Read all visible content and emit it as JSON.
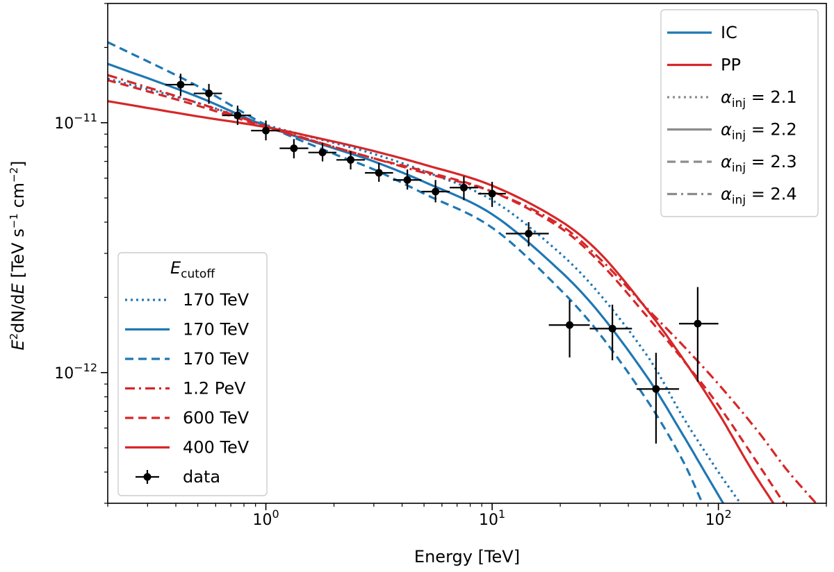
{
  "chart_data": {
    "type": "line",
    "title": "",
    "xlabel": "Energy [TeV]",
    "ylabel": "E²dN/dE [TeV s⁻¹ cm⁻²]",
    "xscale": "log",
    "yscale": "log",
    "xlim": [
      0.2,
      300
    ],
    "ylim": [
      3e-13,
      3e-11
    ],
    "x_ticks": [
      {
        "value": 1,
        "label": "10⁰"
      },
      {
        "value": 10,
        "label": "10¹"
      },
      {
        "value": 100,
        "label": "10²"
      }
    ],
    "y_ticks": [
      {
        "value": 1e-12,
        "label": "10⁻¹²"
      },
      {
        "value": 1e-11,
        "label": "10⁻¹¹"
      }
    ],
    "colors": {
      "IC": "#1f77b4",
      "PP": "#d62728",
      "data": "#000000",
      "legend_gray": "#8c8c8c"
    },
    "legend_right": {
      "placement": "top-right",
      "entries": [
        {
          "label": "IC",
          "color": "#1f77b4",
          "dash": "solid"
        },
        {
          "label": "PP",
          "color": "#d62728",
          "dash": "solid"
        },
        {
          "label": "α_inj = 2.1",
          "sym": "α",
          "sub": "inj",
          "rest": " = 2.1",
          "color": "#8c8c8c",
          "dash": "dotted"
        },
        {
          "label": "α_inj = 2.2",
          "sym": "α",
          "sub": "inj",
          "rest": " = 2.2",
          "color": "#8c8c8c",
          "dash": "solid"
        },
        {
          "label": "α_inj = 2.3",
          "sym": "α",
          "sub": "inj",
          "rest": " = 2.3",
          "color": "#8c8c8c",
          "dash": "dashed"
        },
        {
          "label": "α_inj = 2.4",
          "sym": "α",
          "sub": "inj",
          "rest": " = 2.4",
          "color": "#8c8c8c",
          "dash": "dashdot"
        }
      ]
    },
    "legend_left": {
      "placement": "lower-left",
      "title": "E_cutoff",
      "title_sym": "E",
      "title_sub": "cutoff",
      "entries": [
        {
          "label": "170 TeV",
          "color": "#1f77b4",
          "dash": "dotted"
        },
        {
          "label": "170 TeV",
          "color": "#1f77b4",
          "dash": "solid"
        },
        {
          "label": "170 TeV",
          "color": "#1f77b4",
          "dash": "dashed"
        },
        {
          "label": "1.2 PeV",
          "color": "#d62728",
          "dash": "dashdot"
        },
        {
          "label": "600 TeV",
          "color": "#d62728",
          "dash": "dashed"
        },
        {
          "label": "400 TeV",
          "color": "#d62728",
          "dash": "solid"
        },
        {
          "label": "data",
          "color": "#000000",
          "dash": "marker"
        }
      ]
    },
    "series": [
      {
        "name": "IC α_inj=2.1, E_cutoff=170 TeV",
        "color": "#1f77b4",
        "dash": "dotted",
        "x": [
          0.2,
          0.5,
          1,
          2,
          3,
          5,
          10,
          20,
          30,
          50,
          70,
          100,
          125
        ],
        "y": [
          1.5e-11,
          1.2e-11,
          9.8e-12,
          8.3e-12,
          7.5e-12,
          6.4e-12,
          4.9e-12,
          3e-12,
          2.05e-12,
          1.12e-12,
          6.6e-13,
          4e-13,
          3e-13
        ]
      },
      {
        "name": "IC α_inj=2.2, E_cutoff=170 TeV",
        "color": "#1f77b4",
        "dash": "solid",
        "x": [
          0.2,
          0.5,
          1,
          2,
          3,
          5,
          10,
          20,
          30,
          50,
          70,
          90,
          105
        ],
        "y": [
          1.72e-11,
          1.27e-11,
          9.7e-12,
          7.9e-12,
          7e-12,
          5.8e-12,
          4.3e-12,
          2.55e-12,
          1.72e-12,
          9.2e-13,
          5.6e-13,
          3.8e-13,
          3e-13
        ]
      },
      {
        "name": "IC α_inj=2.3, E_cutoff=170 TeV",
        "color": "#1f77b4",
        "dash": "dashed",
        "x": [
          0.2,
          0.5,
          1,
          2,
          3,
          5,
          10,
          20,
          30,
          50,
          70,
          85
        ],
        "y": [
          2.1e-11,
          1.4e-11,
          9.8e-12,
          7.5e-12,
          6.5e-12,
          5.2e-12,
          3.8e-12,
          2.15e-12,
          1.42e-12,
          7.4e-13,
          4.4e-13,
          3e-13
        ]
      },
      {
        "name": "PP α_inj=2.4, E_cutoff=1.2 PeV",
        "color": "#d62728",
        "dash": "dashdot",
        "x": [
          0.2,
          0.5,
          1,
          2,
          3,
          5,
          10,
          20,
          30,
          50,
          70,
          100,
          150,
          200,
          270
        ],
        "y": [
          1.55e-11,
          1.2e-11,
          9.7e-12,
          8e-12,
          7.2e-12,
          6.3e-12,
          5.3e-12,
          3.9e-12,
          2.85e-12,
          1.75e-12,
          1.28e-12,
          9e-13,
          5.8e-13,
          4.1e-13,
          3e-13
        ]
      },
      {
        "name": "PP α_inj=2.3, E_cutoff=600 TeV",
        "color": "#d62728",
        "dash": "dashed",
        "x": [
          0.2,
          0.5,
          1,
          2,
          3,
          5,
          10,
          20,
          30,
          50,
          70,
          100,
          150,
          195
        ],
        "y": [
          1.48e-11,
          1.17e-11,
          9.6e-12,
          8e-12,
          7.2e-12,
          6.4e-12,
          5.3e-12,
          3.8e-12,
          2.75e-12,
          1.62e-12,
          1.12e-12,
          7.4e-13,
          4.3e-13,
          3e-13
        ]
      },
      {
        "name": "PP α_inj=2.2, E_cutoff=400 TeV",
        "color": "#d62728",
        "dash": "solid",
        "x": [
          0.2,
          0.5,
          1,
          2,
          3,
          5,
          10,
          20,
          30,
          50,
          70,
          100,
          140,
          175
        ],
        "y": [
          1.22e-11,
          1.06e-11,
          9.6e-12,
          8.4e-12,
          7.7e-12,
          6.8e-12,
          5.6e-12,
          4.05e-12,
          3e-12,
          1.72e-12,
          1.13e-12,
          6.9e-13,
          4.1e-13,
          3e-13
        ]
      }
    ],
    "data_points": [
      {
        "x": 0.42,
        "y": 1.42e-11,
        "xerr": [
          0.36,
          0.48
        ],
        "yerr": [
          1.28e-11,
          1.57e-11
        ]
      },
      {
        "x": 0.56,
        "y": 1.31e-11,
        "xerr": [
          0.48,
          0.64
        ],
        "yerr": [
          1.19e-11,
          1.43e-11
        ]
      },
      {
        "x": 0.75,
        "y": 1.07e-11,
        "xerr": [
          0.64,
          0.86
        ],
        "yerr": [
          9.8e-12,
          1.17e-11
        ]
      },
      {
        "x": 1.0,
        "y": 9.3e-12,
        "xerr": [
          0.86,
          1.15
        ],
        "yerr": [
          8.5e-12,
          1.02e-11
        ]
      },
      {
        "x": 1.33,
        "y": 7.9e-12,
        "xerr": [
          1.15,
          1.54
        ],
        "yerr": [
          7.2e-12,
          8.6e-12
        ]
      },
      {
        "x": 1.78,
        "y": 7.6e-12,
        "xerr": [
          1.54,
          2.05
        ],
        "yerr": [
          7e-12,
          8.3e-12
        ]
      },
      {
        "x": 2.37,
        "y": 7.1e-12,
        "xerr": [
          2.05,
          2.74
        ],
        "yerr": [
          6.5e-12,
          7.7e-12
        ]
      },
      {
        "x": 3.16,
        "y": 6.3e-12,
        "xerr": [
          2.74,
          3.65
        ],
        "yerr": [
          5.8e-12,
          6.9e-12
        ]
      },
      {
        "x": 4.22,
        "y": 5.9e-12,
        "xerr": [
          3.65,
          4.87
        ],
        "yerr": [
          5.4e-12,
          6.5e-12
        ]
      },
      {
        "x": 5.62,
        "y": 5.3e-12,
        "xerr": [
          4.87,
          6.49
        ],
        "yerr": [
          4.8e-12,
          5.9e-12
        ]
      },
      {
        "x": 7.5,
        "y": 5.5e-12,
        "xerr": [
          6.49,
          8.66
        ],
        "yerr": [
          4.9e-12,
          6.1e-12
        ]
      },
      {
        "x": 10.0,
        "y": 5.2e-12,
        "xerr": [
          8.66,
          11.5
        ],
        "yerr": [
          4.6e-12,
          5.8e-12
        ]
      },
      {
        "x": 14.5,
        "y": 3.6e-12,
        "xerr": [
          11.5,
          17.8
        ],
        "yerr": [
          3.2e-12,
          4e-12
        ]
      },
      {
        "x": 22.0,
        "y": 1.55e-12,
        "xerr": [
          17.8,
          27.0
        ],
        "yerr": [
          1.15e-12,
          1.95e-12
        ]
      },
      {
        "x": 34.0,
        "y": 1.5e-12,
        "xerr": [
          27.0,
          41.5
        ],
        "yerr": [
          1.12e-12,
          1.87e-12
        ]
      },
      {
        "x": 53.0,
        "y": 8.6e-13,
        "xerr": [
          43.5,
          67.0
        ],
        "yerr": [
          5.2e-13,
          1.2e-12
        ]
      },
      {
        "x": 81.0,
        "y": 1.57e-12,
        "xerr": [
          67.0,
          100.0
        ],
        "yerr": [
          9.2e-13,
          2.2e-12
        ]
      }
    ]
  }
}
